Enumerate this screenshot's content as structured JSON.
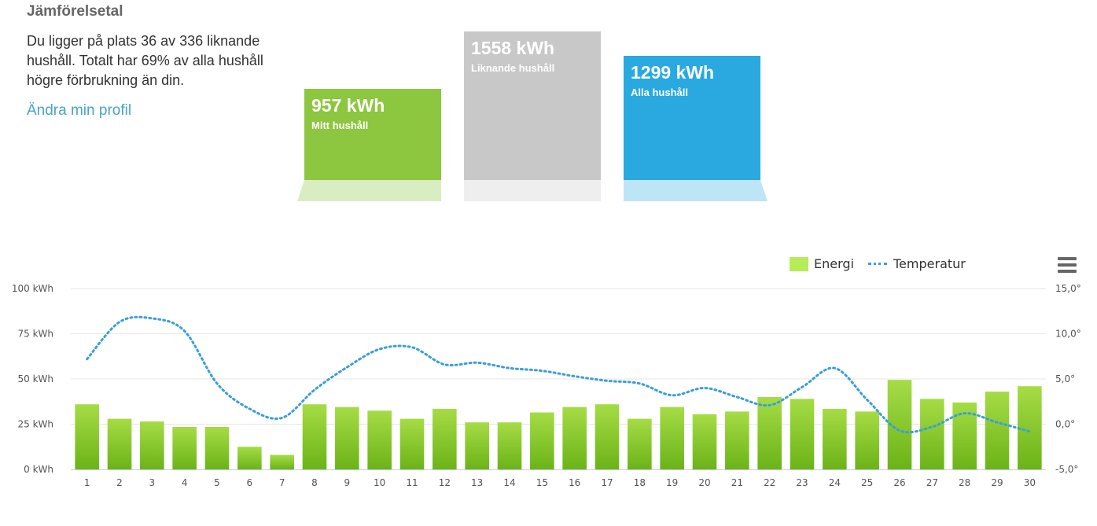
{
  "comparison": {
    "title": "Jämförelsetal",
    "description": "Du ligger på plats 36 av 336 liknande hushåll. Totalt har 69% av alla hushåll högre förbrukning än din.",
    "profile_link": "Ändra min profil",
    "boxes": [
      {
        "value": "957 kWh",
        "label": "Mitt hushåll",
        "color": "#8dc63f",
        "base_color": "#d9edc3"
      },
      {
        "value": "1558 kWh",
        "label": "Liknande hushåll",
        "color": "#c8c8c8",
        "base_color": "#eeeeee"
      },
      {
        "value": "1299 kWh",
        "label": "Alla hushåll",
        "color": "#29a9e0",
        "base_color": "#bde5f6"
      }
    ]
  },
  "legend": {
    "energy": "Energi",
    "temperature": "Temperatur"
  },
  "colors": {
    "bar_top": "#a6dc45",
    "bar_bottom": "#6bb318",
    "temp_line": "#3a9fd6",
    "legend_energy": "#b5ec58",
    "grid": "#e6e6e6",
    "axis": "#c0d0e0"
  },
  "menu_icon": "hamburger-menu-icon",
  "chart_data": {
    "type": "bar",
    "categories": [
      "1",
      "2",
      "3",
      "4",
      "5",
      "6",
      "7",
      "8",
      "9",
      "10",
      "11",
      "12",
      "13",
      "14",
      "15",
      "16",
      "17",
      "18",
      "19",
      "20",
      "21",
      "22",
      "23",
      "24",
      "25",
      "26",
      "27",
      "28",
      "29",
      "30"
    ],
    "y_left_ticks": [
      "0 kWh",
      "25 kWh",
      "50 kWh",
      "75 kWh",
      "100 kWh"
    ],
    "y_right_ticks": [
      "-5,0°",
      "0,0°",
      "5,0°",
      "10,0°",
      "15,0°"
    ],
    "ylim_left": [
      0,
      100
    ],
    "ylim_right": [
      -5,
      15
    ],
    "grid": true,
    "legend_position": "top-right",
    "series": [
      {
        "name": "Energi",
        "type": "bar",
        "axis": "left",
        "values": [
          36,
          28,
          26.5,
          23.5,
          23.5,
          12.5,
          8,
          36,
          34.5,
          32.5,
          28,
          33.5,
          26,
          26,
          31.5,
          34.5,
          36,
          28,
          34.5,
          30.5,
          32,
          40,
          39,
          33.5,
          32,
          49.5,
          39,
          37,
          43,
          46
        ]
      },
      {
        "name": "Temperatur",
        "type": "line",
        "style": "dotted",
        "axis": "right",
        "values": [
          7.2,
          11.3,
          11.7,
          10.3,
          4.5,
          1.7,
          0.7,
          3.8,
          6.3,
          8.3,
          8.5,
          6.6,
          6.8,
          6.2,
          5.9,
          5.3,
          4.8,
          4.5,
          3.2,
          4.0,
          3.0,
          2.1,
          4.1,
          6.2,
          2.7,
          -0.7,
          -0.3,
          1.2,
          0.2,
          -0.8
        ]
      }
    ]
  }
}
